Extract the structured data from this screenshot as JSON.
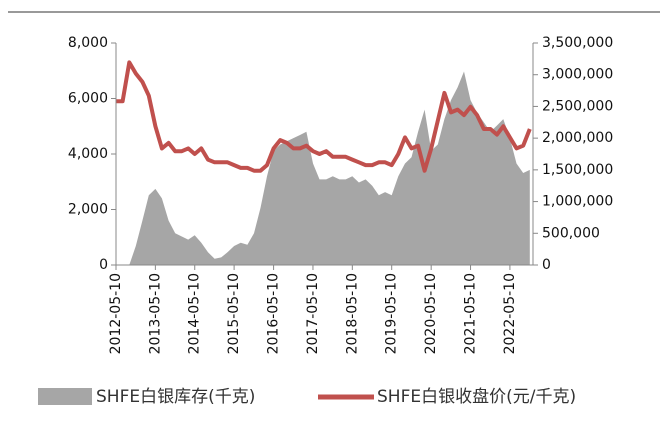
{
  "chart_data": {
    "type": "area-line",
    "x": [
      "2012-05-10",
      "2012-07-10",
      "2012-09-10",
      "2012-11-10",
      "2013-01-10",
      "2013-03-10",
      "2013-05-10",
      "2013-07-10",
      "2013-09-10",
      "2013-11-10",
      "2014-01-10",
      "2014-03-10",
      "2014-05-10",
      "2014-07-10",
      "2014-09-10",
      "2014-11-10",
      "2015-01-10",
      "2015-03-10",
      "2015-05-10",
      "2015-07-10",
      "2015-09-10",
      "2015-11-10",
      "2016-01-10",
      "2016-03-10",
      "2016-05-10",
      "2016-07-10",
      "2016-09-10",
      "2016-11-10",
      "2017-01-10",
      "2017-03-10",
      "2017-05-10",
      "2017-07-10",
      "2017-09-10",
      "2017-11-10",
      "2018-01-10",
      "2018-03-10",
      "2018-05-10",
      "2018-07-10",
      "2018-09-10",
      "2018-11-10",
      "2019-01-10",
      "2019-03-10",
      "2019-05-10",
      "2019-07-10",
      "2019-09-10",
      "2019-11-10",
      "2020-01-10",
      "2020-03-10",
      "2020-05-10",
      "2020-07-10",
      "2020-09-10",
      "2020-11-10",
      "2021-01-10",
      "2021-03-10",
      "2021-05-10",
      "2021-07-10",
      "2021-09-10",
      "2021-11-10",
      "2022-01-10",
      "2022-03-10",
      "2022-05-10",
      "2022-07-10",
      "2022-09-10",
      "2022-11-10"
    ],
    "series": [
      {
        "name": "SHFE白银库存(千克)",
        "color": "#a6a6a6",
        "kind": "area",
        "axis": "y2",
        "values": [
          0,
          0,
          0,
          300000,
          700000,
          1100000,
          1200000,
          1050000,
          700000,
          500000,
          450000,
          400000,
          470000,
          350000,
          200000,
          100000,
          120000,
          200000,
          300000,
          350000,
          320000,
          500000,
          900000,
          1400000,
          1800000,
          1900000,
          1950000,
          2000000,
          2050000,
          2100000,
          1600000,
          1350000,
          1350000,
          1400000,
          1350000,
          1350000,
          1400000,
          1300000,
          1350000,
          1250000,
          1100000,
          1150000,
          1100000,
          1400000,
          1600000,
          1700000,
          2100000,
          2450000,
          1800000,
          1900000,
          2300000,
          2600000,
          2800000,
          3050000,
          2600000,
          2400000,
          2250000,
          2100000,
          2200000,
          2300000,
          2000000,
          1600000,
          1450000,
          1500000
        ]
      },
      {
        "name": "SHFE白银收盘价(元/千克)",
        "color": "#c0504d",
        "kind": "line",
        "values": [
          5900,
          5900,
          7300,
          6900,
          6600,
          6100,
          5000,
          4200,
          4400,
          4100,
          4100,
          4200,
          4000,
          4200,
          3800,
          3700,
          3700,
          3700,
          3600,
          3500,
          3500,
          3400,
          3400,
          3600,
          4200,
          4500,
          4400,
          4200,
          4200,
          4300,
          4100,
          4000,
          4100,
          3900,
          3900,
          3900,
          3800,
          3700,
          3600,
          3600,
          3700,
          3700,
          3600,
          4000,
          4600,
          4200,
          4300,
          3400,
          4200,
          5200,
          6200,
          5500,
          5600,
          5400,
          5700,
          5400,
          4900,
          4900,
          4700,
          5000,
          4600,
          4200,
          4300,
          4900
        ]
      }
    ],
    "xlim": [
      "2012-05-10",
      "2022-12-10"
    ],
    "xticks": [
      "2012-05-10",
      "2013-05-10",
      "2014-05-10",
      "2015-05-10",
      "2016-05-10",
      "2017-05-10",
      "2018-05-10",
      "2019-05-10",
      "2020-05-10",
      "2021-05-10",
      "2022-05-10"
    ],
    "ylim": [
      0,
      8000
    ],
    "yticks": [
      0,
      {
        "value": 2000,
        "label": "2,000"
      },
      {
        "value": 4000,
        "label": "4,000"
      },
      {
        "value": 6000,
        "label": "6,000"
      },
      {
        "value": 8000,
        "label": "8,000"
      }
    ],
    "y2lim": [
      0,
      3500000
    ],
    "y2ticks": [
      0,
      {
        "value": 500000,
        "label": "500,000"
      },
      {
        "value": 1000000,
        "label": "1,000,000"
      },
      {
        "value": 1500000,
        "label": "1,500,000"
      },
      {
        "value": 2000000,
        "label": "2,000,000"
      },
      {
        "value": 2500000,
        "label": "2,500,000"
      },
      {
        "value": 3000000,
        "label": "3,000,000"
      },
      {
        "value": 3500000,
        "label": "3,500,000"
      }
    ]
  }
}
